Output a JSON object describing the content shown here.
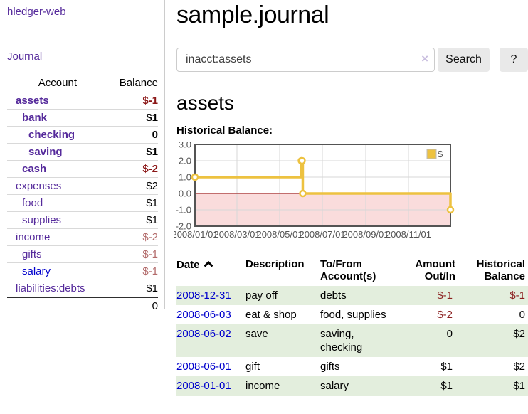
{
  "sidebar": {
    "app_title": "hledger-web",
    "journal_label": "Journal",
    "accounts_table": {
      "headers": {
        "account": "Account",
        "balance": "Balance"
      },
      "rows": [
        {
          "name": "assets",
          "balance": "$-1",
          "indent": 0,
          "matched": true,
          "negative": "strong"
        },
        {
          "name": "bank",
          "balance": "$1",
          "indent": 1,
          "matched": true
        },
        {
          "name": "checking",
          "balance": "0",
          "indent": 2,
          "matched": true
        },
        {
          "name": "saving",
          "balance": "$1",
          "indent": 2,
          "matched": true
        },
        {
          "name": "cash",
          "balance": "$-2",
          "indent": 1,
          "matched": true,
          "negative": "strong"
        },
        {
          "name": "expenses",
          "balance": "$2",
          "indent": 0
        },
        {
          "name": "food",
          "balance": "$1",
          "indent": 1
        },
        {
          "name": "supplies",
          "balance": "$1",
          "indent": 1
        },
        {
          "name": "income",
          "balance": "$-2",
          "indent": 0,
          "negative": "soft"
        },
        {
          "name": "gifts",
          "balance": "$-1",
          "indent": 1,
          "negative": "soft"
        },
        {
          "name": "salary",
          "balance": "$-1",
          "indent": 1,
          "negative": "soft",
          "unvisited": true
        },
        {
          "name": "liabilities:debts",
          "balance": "$1",
          "indent": 0
        }
      ],
      "total": "0"
    }
  },
  "header": {
    "title": "sample.journal"
  },
  "search": {
    "query": "inacct:assets",
    "clear_icon": "×",
    "search_button": "Search",
    "help_button": "?"
  },
  "account_page": {
    "heading": "assets",
    "chart_label": "Historical Balance:"
  },
  "chart_data": {
    "type": "line",
    "style": "step",
    "title": "Historical Balance of assets",
    "series": [
      {
        "name": "$",
        "color": "#edc240",
        "points": [
          [
            "2008-01-01",
            1
          ],
          [
            "2008-06-01",
            2
          ],
          [
            "2008-06-02",
            2
          ],
          [
            "2008-06-03",
            0
          ],
          [
            "2008-12-31",
            -1
          ]
        ]
      }
    ],
    "x_ticks": [
      "2008/01/01",
      "2008/03/01",
      "2008/05/01",
      "2008/07/01",
      "2008/09/01",
      "2008/11/01"
    ],
    "y_ticks": [
      3.0,
      2.0,
      1.0,
      0.0,
      -1.0,
      -2.0
    ],
    "xlim": [
      "2008-01-01",
      "2008-12-31"
    ],
    "ylim": [
      -2,
      3
    ],
    "grid": true,
    "negative_region_color": "#fadcdc",
    "zero_line_color": "#8b0000",
    "axis_color": "#545454",
    "legend": {
      "label": "$",
      "position": "top-right"
    }
  },
  "register": {
    "headers": [
      "Date",
      "Description",
      "To/From Account(s)",
      "Amount Out/In",
      "Historical Balance"
    ],
    "rows": [
      {
        "date": "2008-12-31",
        "description": "pay off",
        "accounts": "debts",
        "amount": "$-1",
        "amount_negative": true,
        "balance": "$-1",
        "balance_negative": true
      },
      {
        "date": "2008-06-03",
        "description": "eat & shop",
        "accounts": "food, supplies",
        "amount": "$-2",
        "amount_negative": true,
        "balance": "0",
        "balance_negative": false
      },
      {
        "date": "2008-06-02",
        "description": "save",
        "accounts": "saving, checking",
        "amount": "0",
        "amount_negative": false,
        "balance": "$2",
        "balance_negative": false
      },
      {
        "date": "2008-06-01",
        "description": "gift",
        "accounts": "gifts",
        "amount": "$1",
        "amount_negative": false,
        "balance": "$2",
        "balance_negative": false
      },
      {
        "date": "2008-01-01",
        "description": "income",
        "accounts": "salary",
        "amount": "$1",
        "amount_negative": false,
        "balance": "$1",
        "balance_negative": false
      }
    ]
  }
}
